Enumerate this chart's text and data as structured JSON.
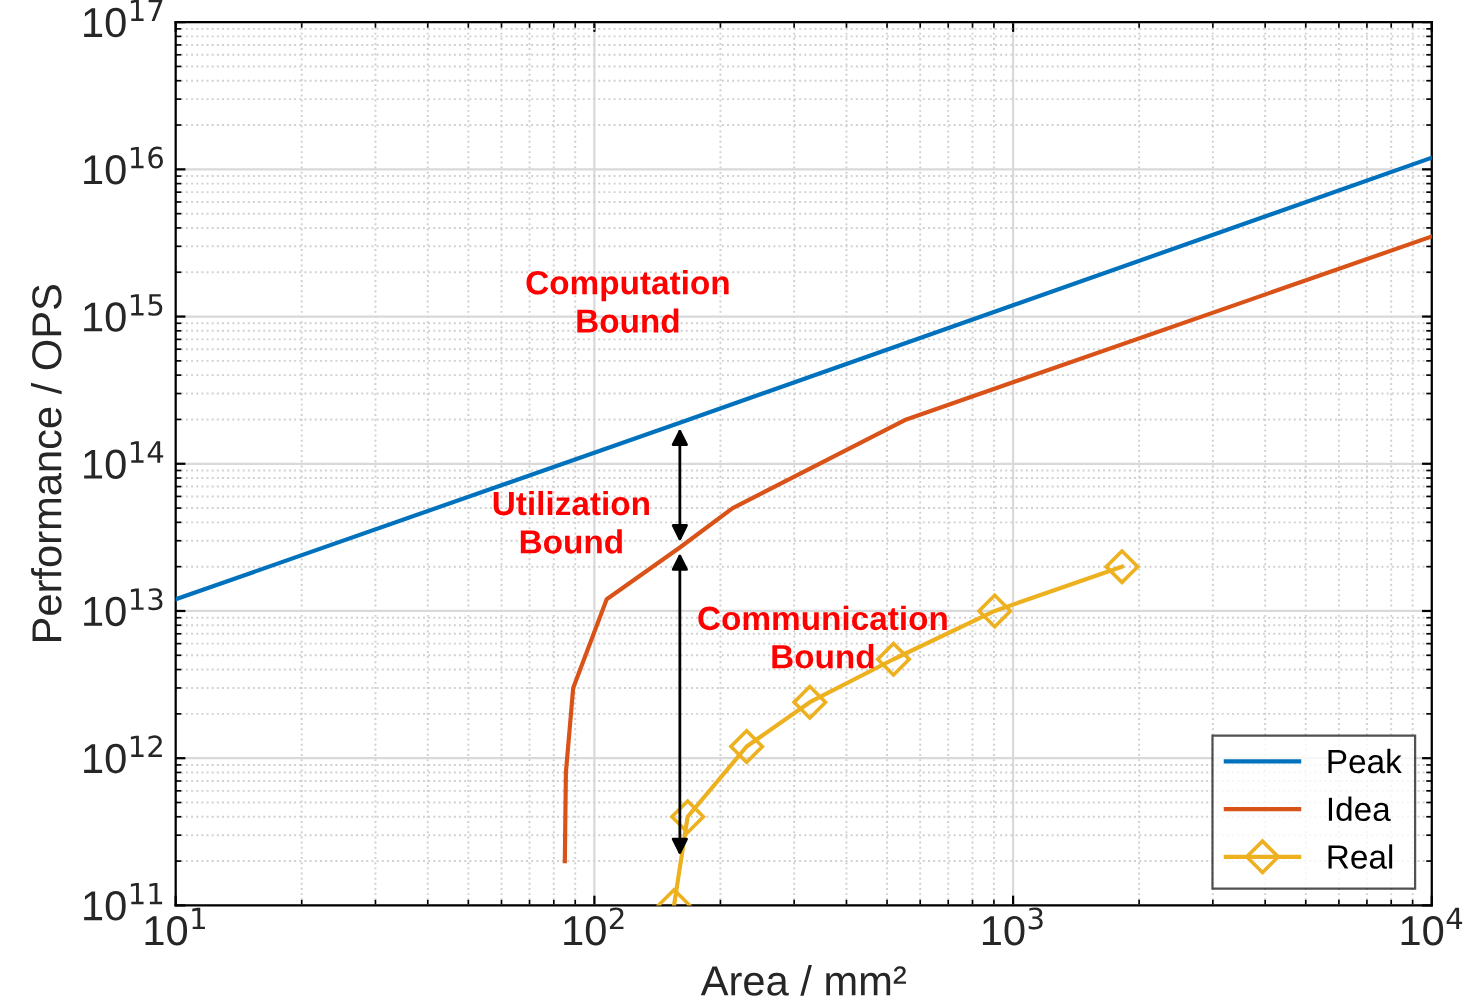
{
  "chart_data": {
    "type": "line",
    "xlabel": "Area / mm²",
    "ylabel": "Performance / OPS",
    "log": "xy",
    "xlim": [
      10,
      10000
    ],
    "ylim": [
      100000000000.0,
      1e+17
    ],
    "xticks": [
      {
        "value": 10,
        "label": "10$^{1}$"
      },
      {
        "value": 100,
        "label": "10$^{2}$"
      },
      {
        "value": 1000,
        "label": "10$^{3}$"
      },
      {
        "value": 10000,
        "label": "10$^{4}$"
      }
    ],
    "yticks": [
      {
        "value": 100000000000.0,
        "label": "10$^{11}$"
      },
      {
        "value": 1000000000000.0,
        "label": "10$^{12}$"
      },
      {
        "value": 10000000000000.0,
        "label": "10$^{13}$"
      },
      {
        "value": 100000000000000.0,
        "label": "10$^{14}$"
      },
      {
        "value": 1000000000000000.0,
        "label": "10$^{15}$"
      },
      {
        "value": 1e+16,
        "label": "10$^{16}$"
      },
      {
        "value": 1e+17,
        "label": "10$^{17}$"
      }
    ],
    "grid": true,
    "legend": "bottom right",
    "line_style": "solid",
    "series": [
      {
        "name": "Peak",
        "color": "#0072bd",
        "marker": "none",
        "x": [
          10,
          160,
          10000
        ],
        "values": [
          12000000000000.0,
          190000000000000.0,
          1.2e+16
        ]
      },
      {
        "name": "Idea",
        "color": "#d95319",
        "marker": "none",
        "x": [
          85,
          85.5,
          89,
          107,
          160,
          214,
          556,
          10000
        ],
        "values": [
          200000000000.0,
          800000000000.0,
          3000000000000.0,
          12000000000000.0,
          27000000000000.0,
          50000000000000.0,
          200000000000000.0,
          3500000000000000.0
        ]
      },
      {
        "name": "Real",
        "color": "#edb120",
        "marker": "diamond",
        "x": [
          155,
          167,
          231,
          327,
          518,
          904,
          1820
        ],
        "values": [
          100000000000.0,
          400000000000.0,
          1200000000000.0,
          2400000000000.0,
          4700000000000.0,
          10000000000000.0,
          20000000000000.0
        ]
      }
    ],
    "annotations": [
      "Computation\nBound",
      {
        "text": "Utilization\nBound",
        "x": 160,
        "y": 190000000000000.0
      },
      {
        "text": "Communication\nBound",
        "x": 160,
        "y": 27000000000000.0
      }
    ]
  }
}
